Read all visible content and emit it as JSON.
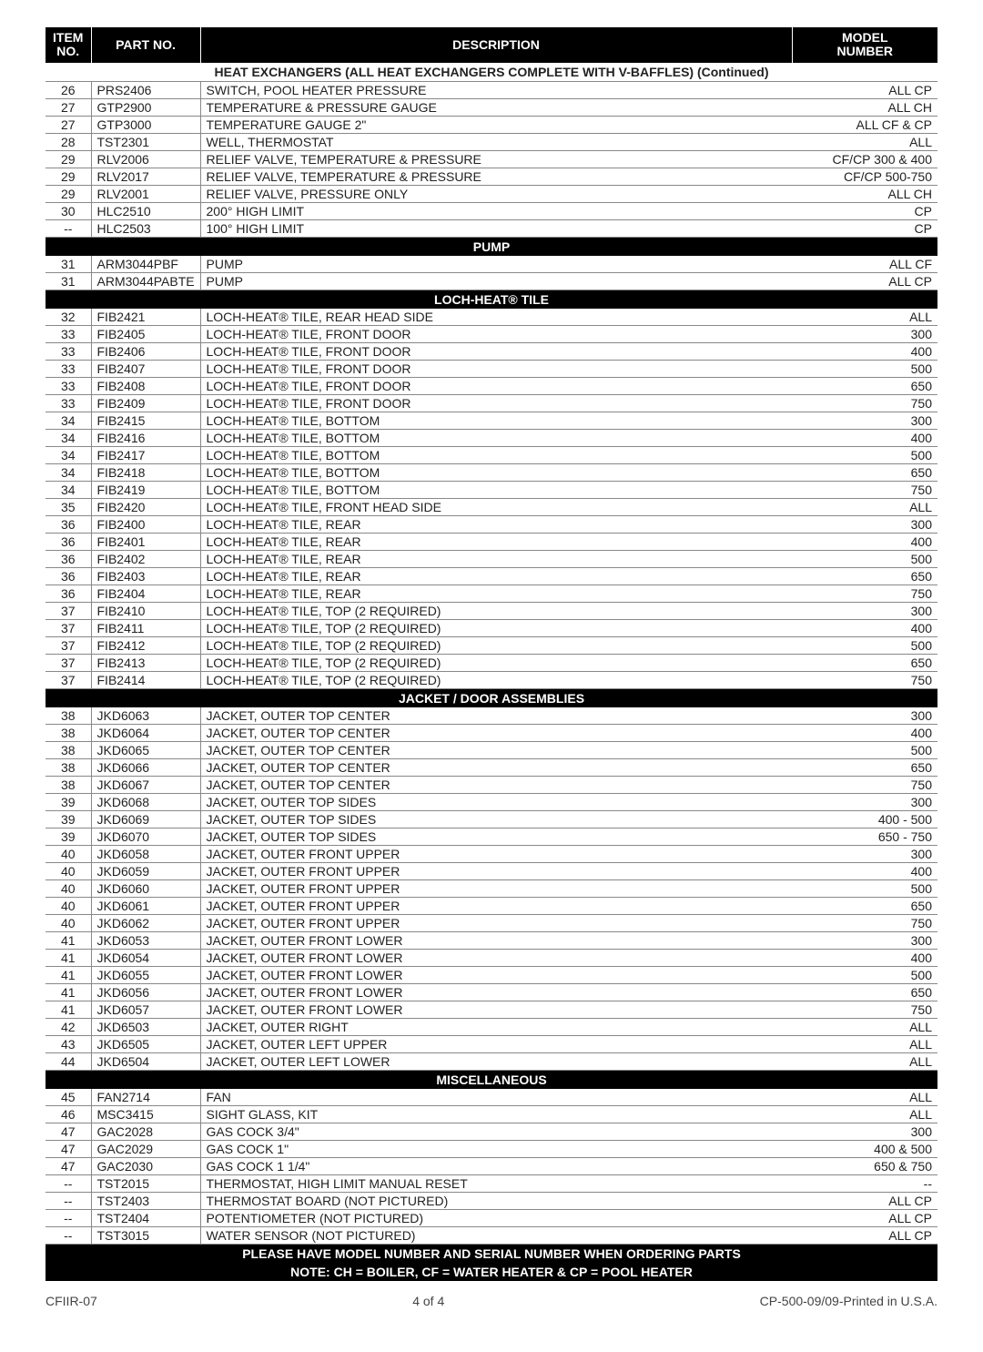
{
  "headers": {
    "item": "ITEM\nNO.",
    "part": "PART NO.",
    "desc": "DESCRIPTION",
    "model": "MODEL\nNUMBER"
  },
  "subheading": "HEAT EXCHANGERS (ALL HEAT EXCHANGERS COMPLETE WITH V-BAFFLES) (Continued)",
  "blocks": [
    {
      "rows": [
        {
          "item": "26",
          "part": "PRS2406",
          "desc": "SWITCH, POOL HEATER PRESSURE",
          "model": "ALL CP"
        },
        {
          "item": "27",
          "part": "GTP2900",
          "desc": "TEMPERATURE & PRESSURE GAUGE",
          "model": "ALL CH"
        },
        {
          "item": "27",
          "part": "GTP3000",
          "desc": "TEMPERATURE GAUGE 2\"",
          "model": "ALL CF & CP"
        },
        {
          "item": "28",
          "part": "TST2301",
          "desc": "WELL, THERMOSTAT",
          "model": "ALL"
        },
        {
          "item": "29",
          "part": "RLV2006",
          "desc": "RELIEF VALVE, TEMPERATURE & PRESSURE",
          "model": "CF/CP 300 & 400"
        },
        {
          "item": "29",
          "part": "RLV2017",
          "desc": "RELIEF VALVE, TEMPERATURE & PRESSURE",
          "model": "CF/CP 500-750"
        },
        {
          "item": "29",
          "part": "RLV2001",
          "desc": "RELIEF VALVE, PRESSURE ONLY",
          "model": "ALL CH"
        },
        {
          "item": "30",
          "part": "HLC2510",
          "desc": "200° HIGH LIMIT",
          "model": "CP"
        },
        {
          "item": "--",
          "part": "HLC2503",
          "desc": "100° HIGH LIMIT",
          "model": "CP"
        }
      ]
    },
    {
      "section": "PUMP",
      "rows": [
        {
          "item": "31",
          "part": "ARM3044PBF",
          "desc": "PUMP",
          "model": "ALL CF"
        },
        {
          "item": "31",
          "part": "ARM3044PABTE",
          "desc": "PUMP",
          "model": "ALL CP"
        }
      ]
    },
    {
      "section": "LOCH-HEAT® TILE",
      "rows": [
        {
          "item": "32",
          "part": "FIB2421",
          "desc": "LOCH-HEAT® TILE, REAR HEAD SIDE",
          "model": "ALL"
        },
        {
          "item": "33",
          "part": "FIB2405",
          "desc": "LOCH-HEAT® TILE, FRONT DOOR",
          "model": "300"
        },
        {
          "item": "33",
          "part": "FIB2406",
          "desc": "LOCH-HEAT® TILE, FRONT DOOR",
          "model": "400"
        },
        {
          "item": "33",
          "part": "FIB2407",
          "desc": "LOCH-HEAT® TILE, FRONT DOOR",
          "model": "500"
        },
        {
          "item": "33",
          "part": "FIB2408",
          "desc": "LOCH-HEAT® TILE, FRONT DOOR",
          "model": "650"
        },
        {
          "item": "33",
          "part": "FIB2409",
          "desc": "LOCH-HEAT® TILE, FRONT DOOR",
          "model": "750"
        },
        {
          "item": "34",
          "part": "FIB2415",
          "desc": "LOCH-HEAT® TILE, BOTTOM",
          "model": "300"
        },
        {
          "item": "34",
          "part": "FIB2416",
          "desc": "LOCH-HEAT® TILE, BOTTOM",
          "model": "400"
        },
        {
          "item": "34",
          "part": "FIB2417",
          "desc": "LOCH-HEAT® TILE, BOTTOM",
          "model": "500"
        },
        {
          "item": "34",
          "part": "FIB2418",
          "desc": "LOCH-HEAT® TILE, BOTTOM",
          "model": "650"
        },
        {
          "item": "34",
          "part": "FIB2419",
          "desc": "LOCH-HEAT® TILE, BOTTOM",
          "model": "750"
        },
        {
          "item": "35",
          "part": "FIB2420",
          "desc": "LOCH-HEAT® TILE, FRONT HEAD SIDE",
          "model": "ALL"
        },
        {
          "item": "36",
          "part": "FIB2400",
          "desc": "LOCH-HEAT® TILE, REAR",
          "model": "300"
        },
        {
          "item": "36",
          "part": "FIB2401",
          "desc": "LOCH-HEAT® TILE, REAR",
          "model": "400"
        },
        {
          "item": "36",
          "part": "FIB2402",
          "desc": "LOCH-HEAT® TILE, REAR",
          "model": "500"
        },
        {
          "item": "36",
          "part": "FIB2403",
          "desc": "LOCH-HEAT® TILE, REAR",
          "model": "650"
        },
        {
          "item": "36",
          "part": "FIB2404",
          "desc": "LOCH-HEAT® TILE, REAR",
          "model": "750"
        },
        {
          "item": "37",
          "part": "FIB2410",
          "desc": "LOCH-HEAT® TILE, TOP (2 REQUIRED)",
          "model": "300"
        },
        {
          "item": "37",
          "part": "FIB2411",
          "desc": "LOCH-HEAT® TILE, TOP (2 REQUIRED)",
          "model": "400"
        },
        {
          "item": "37",
          "part": "FIB2412",
          "desc": "LOCH-HEAT® TILE, TOP (2 REQUIRED)",
          "model": "500"
        },
        {
          "item": "37",
          "part": "FIB2413",
          "desc": "LOCH-HEAT® TILE, TOP (2 REQUIRED)",
          "model": "650"
        },
        {
          "item": "37",
          "part": "FIB2414",
          "desc": "LOCH-HEAT® TILE, TOP (2 REQUIRED)",
          "model": "750"
        }
      ]
    },
    {
      "section": "JACKET / DOOR ASSEMBLIES",
      "rows": [
        {
          "item": "38",
          "part": "JKD6063",
          "desc": "JACKET, OUTER TOP CENTER",
          "model": "300"
        },
        {
          "item": "38",
          "part": "JKD6064",
          "desc": "JACKET, OUTER TOP CENTER",
          "model": "400"
        },
        {
          "item": "38",
          "part": "JKD6065",
          "desc": "JACKET, OUTER TOP CENTER",
          "model": "500"
        },
        {
          "item": "38",
          "part": "JKD6066",
          "desc": "JACKET, OUTER TOP CENTER",
          "model": "650"
        },
        {
          "item": "38",
          "part": "JKD6067",
          "desc": "JACKET, OUTER TOP CENTER",
          "model": "750"
        },
        {
          "item": "39",
          "part": "JKD6068",
          "desc": "JACKET, OUTER TOP SIDES",
          "model": "300"
        },
        {
          "item": "39",
          "part": "JKD6069",
          "desc": "JACKET, OUTER TOP SIDES",
          "model": "400 - 500"
        },
        {
          "item": "39",
          "part": "JKD6070",
          "desc": "JACKET, OUTER TOP SIDES",
          "model": "650 - 750"
        },
        {
          "item": "40",
          "part": "JKD6058",
          "desc": "JACKET, OUTER FRONT UPPER",
          "model": "300"
        },
        {
          "item": "40",
          "part": "JKD6059",
          "desc": "JACKET, OUTER FRONT UPPER",
          "model": "400"
        },
        {
          "item": "40",
          "part": "JKD6060",
          "desc": "JACKET, OUTER FRONT UPPER",
          "model": "500"
        },
        {
          "item": "40",
          "part": "JKD6061",
          "desc": "JACKET, OUTER FRONT UPPER",
          "model": "650"
        },
        {
          "item": "40",
          "part": "JKD6062",
          "desc": "JACKET, OUTER FRONT UPPER",
          "model": "750"
        },
        {
          "item": "41",
          "part": "JKD6053",
          "desc": "JACKET, OUTER FRONT LOWER",
          "model": "300"
        },
        {
          "item": "41",
          "part": "JKD6054",
          "desc": "JACKET, OUTER FRONT LOWER",
          "model": "400"
        },
        {
          "item": "41",
          "part": "JKD6055",
          "desc": "JACKET, OUTER FRONT LOWER",
          "model": "500"
        },
        {
          "item": "41",
          "part": "JKD6056",
          "desc": "JACKET, OUTER FRONT LOWER",
          "model": "650"
        },
        {
          "item": "41",
          "part": "JKD6057",
          "desc": "JACKET, OUTER FRONT LOWER",
          "model": "750"
        },
        {
          "item": "42",
          "part": "JKD6503",
          "desc": "JACKET, OUTER RIGHT",
          "model": "ALL"
        },
        {
          "item": "43",
          "part": "JKD6505",
          "desc": "JACKET, OUTER LEFT UPPER",
          "model": "ALL"
        },
        {
          "item": "44",
          "part": "JKD6504",
          "desc": "JACKET, OUTER LEFT LOWER",
          "model": "ALL"
        }
      ]
    },
    {
      "section": "MISCELLANEOUS",
      "rows": [
        {
          "item": "45",
          "part": "FAN2714",
          "desc": "FAN",
          "model": "ALL"
        },
        {
          "item": "46",
          "part": "MSC3415",
          "desc": "SIGHT GLASS, KIT",
          "model": "ALL"
        },
        {
          "item": "47",
          "part": "GAC2028",
          "desc": "GAS COCK 3/4\"",
          "model": "300"
        },
        {
          "item": "47",
          "part": "GAC2029",
          "desc": "GAS COCK 1\"",
          "model": "400 & 500"
        },
        {
          "item": "47",
          "part": "GAC2030",
          "desc": "GAS COCK 1 1/4\"",
          "model": "650 & 750"
        },
        {
          "item": "--",
          "part": "TST2015",
          "desc": "THERMOSTAT, HIGH LIMIT MANUAL RESET",
          "model": "--"
        },
        {
          "item": "--",
          "part": "TST2403",
          "desc": "THERMOSTAT BOARD (NOT PICTURED)",
          "model": "ALL CP"
        },
        {
          "item": "--",
          "part": "TST2404",
          "desc": "POTENTIOMETER (NOT PICTURED)",
          "model": "ALL CP"
        },
        {
          "item": "--",
          "part": "TST3015",
          "desc": "WATER SENSOR (NOT PICTURED)",
          "model": "ALL CP"
        }
      ]
    }
  ],
  "notes": [
    "PLEASE HAVE MODEL NUMBER AND SERIAL NUMBER WHEN ORDERING PARTS",
    "NOTE:  CH = BOILER, CF = WATER HEATER & CP = POOL HEATER"
  ],
  "footer": {
    "left": "CFIIR-07",
    "center": "4 of 4",
    "right": "CP-500-09/09-Printed in U.S.A."
  }
}
